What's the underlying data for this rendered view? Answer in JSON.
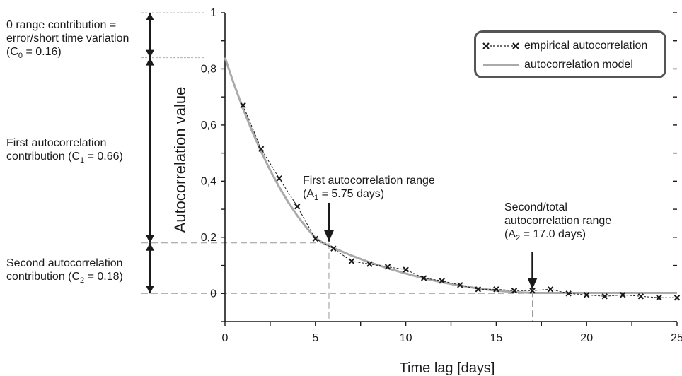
{
  "chart_data": {
    "type": "line",
    "xlabel": "Time lag [days]",
    "ylabel": "Autocorrelation value",
    "xlim": [
      0,
      25
    ],
    "ylim": [
      -0.1,
      1.0
    ],
    "x_ticks": [
      0,
      5,
      10,
      15,
      20,
      25
    ],
    "x_tick_labels": [
      "0",
      "5",
      "10",
      "15",
      "20",
      "25"
    ],
    "y_ticks": [
      0,
      0.2,
      0.4,
      0.6,
      0.8,
      1.0
    ],
    "y_tick_labels": [
      "0",
      "0,2",
      "0,4",
      "0,6",
      "0,8",
      "1"
    ],
    "legend_position": "top-right",
    "series": [
      {
        "name": "empirical autocorrelation",
        "style": "dashed-with-x-markers",
        "color": "#1a1a1a",
        "x": [
          1,
          2,
          3,
          4,
          5,
          6,
          7,
          8,
          9,
          10,
          11,
          12,
          13,
          14,
          15,
          16,
          17,
          18,
          19,
          20,
          21,
          22,
          23,
          24,
          25
        ],
        "y": [
          0.67,
          0.515,
          0.41,
          0.31,
          0.195,
          0.16,
          0.115,
          0.105,
          0.095,
          0.085,
          0.055,
          0.045,
          0.03,
          0.015,
          0.015,
          0.01,
          0.01,
          0.015,
          0.0,
          -0.005,
          -0.01,
          -0.005,
          -0.01,
          -0.015,
          -0.015
        ]
      },
      {
        "name": "autocorrelation model",
        "style": "solid",
        "color": "#aaaaaa",
        "x": [
          0,
          0.5,
          1,
          1.5,
          2,
          2.5,
          3,
          3.5,
          4,
          4.5,
          5,
          5.5,
          5.75,
          6,
          7,
          8,
          9,
          10,
          11,
          12,
          13,
          14,
          15,
          16,
          17,
          18,
          19,
          20,
          21,
          22,
          23,
          24,
          25
        ],
        "y": [
          0.84,
          0.745,
          0.658,
          0.578,
          0.505,
          0.439,
          0.379,
          0.325,
          0.277,
          0.235,
          0.198,
          0.177,
          0.171,
          0.162,
          0.135,
          0.111,
          0.09,
          0.071,
          0.054,
          0.04,
          0.028,
          0.018,
          0.01,
          0.005,
          0.002,
          0.002,
          0.002,
          0.002,
          0.002,
          0.002,
          0.002,
          0.002,
          0.002
        ]
      }
    ],
    "annotations": {
      "range1_label": "First autocorrelation range",
      "range1_value_pre": "(A",
      "range1_sub": "1",
      "range1_value_post": " = 5.75 days)",
      "range1_x": 5.75,
      "range2_label_line1": "Second/total",
      "range2_label_line2": "autocorrelation range",
      "range2_value_pre": "(A",
      "range2_sub": "2",
      "range2_value_post": " = 17.0 days)",
      "range2_x": 17.0,
      "c0_line1": "0 range contribution =",
      "c0_line2": "error/short time variation",
      "c0_line3_pre": "(C",
      "c0_sub": "0",
      "c0_line3_post": " = 0.16)",
      "c1_line1": "First autocorrelation",
      "c1_line2_pre": "contribution (C",
      "c1_sub": "1",
      "c1_line2_post": " = 0.66)",
      "c2_line1": "Second autocorrelation",
      "c2_line2_pre": "contribution (C",
      "c2_sub": "2",
      "c2_line2_post": " = 0.18)",
      "level_c0_top": 1.0,
      "level_c1_top": 0.84,
      "level_c2_top": 0.18,
      "level_zero": 0.0
    }
  }
}
